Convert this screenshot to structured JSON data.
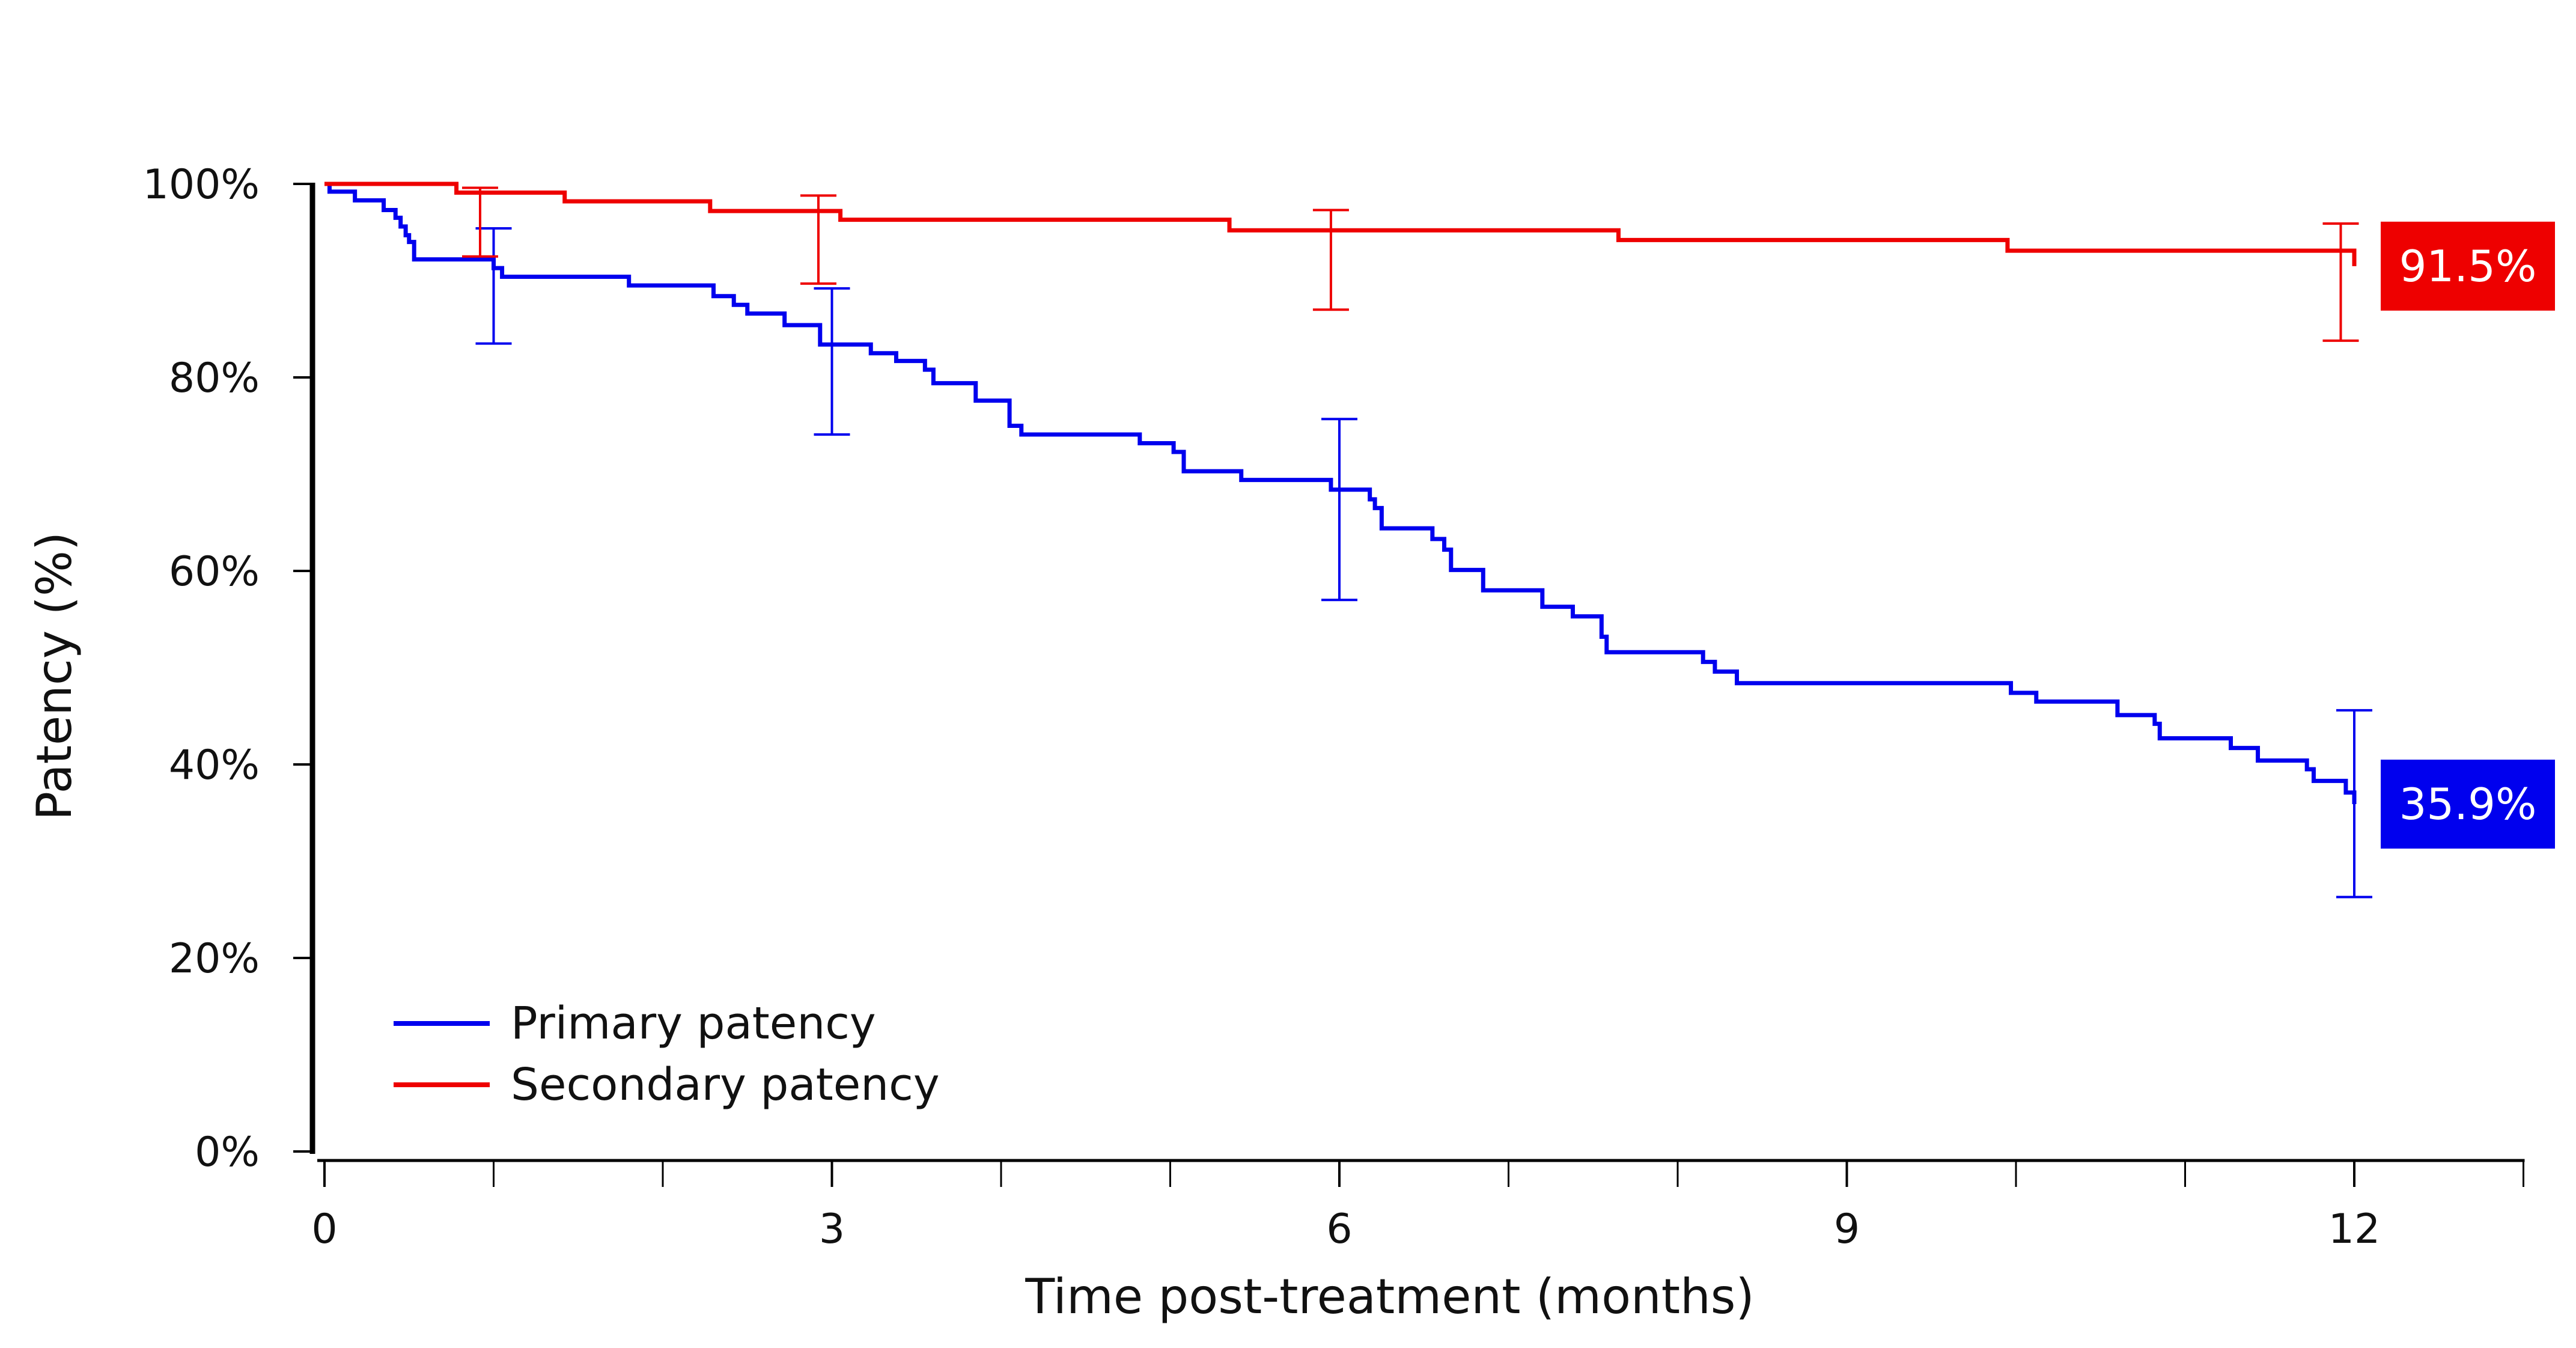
{
  "chart_data": {
    "type": "line",
    "step": true,
    "xlabel": "Time post-treatment (months)",
    "ylabel": "Patency (%)",
    "xlim": [
      0,
      13
    ],
    "ylim": [
      0,
      100
    ],
    "x_ticks": [
      0,
      3,
      6,
      9,
      12
    ],
    "x_minor_ticks": [
      1,
      2,
      4,
      5,
      7,
      8,
      10,
      11,
      13
    ],
    "y_ticks": [
      0,
      20,
      40,
      60,
      80,
      100
    ],
    "y_tick_labels": [
      "0%",
      "20%",
      "40%",
      "60%",
      "80%",
      "100%"
    ],
    "legend_position": "bottom-left",
    "grid": false,
    "series": [
      {
        "name": "Primary patency",
        "color": "#0000ee",
        "x": [
          0,
          0.03,
          0.18,
          0.35,
          0.42,
          0.45,
          0.48,
          0.5,
          0.53,
          1.0,
          1.05,
          1.8,
          2.3,
          2.42,
          2.5,
          2.72,
          2.93,
          3.23,
          3.38,
          3.55,
          3.6,
          3.85,
          4.05,
          4.12,
          4.82,
          5.02,
          5.08,
          5.42,
          5.95,
          6.18,
          6.21,
          6.25,
          6.55,
          6.62,
          6.66,
          6.85,
          7.2,
          7.38,
          7.55,
          7.58,
          8.15,
          8.22,
          8.35,
          9.97,
          10.12,
          10.6,
          10.82,
          10.85,
          11.27,
          11.43,
          11.72,
          11.76,
          11.95,
          12.0
        ],
        "y": [
          100,
          99.2,
          98.3,
          97.3,
          96.5,
          95.6,
          94.7,
          94.0,
          92.2,
          91.3,
          90.4,
          89.5,
          88.4,
          87.5,
          86.6,
          85.4,
          83.4,
          82.5,
          81.7,
          80.8,
          79.4,
          77.6,
          75.0,
          74.1,
          73.2,
          72.3,
          70.3,
          69.4,
          68.4,
          67.4,
          66.5,
          64.4,
          63.3,
          62.2,
          60.1,
          58.0,
          56.3,
          55.3,
          53.2,
          51.6,
          50.6,
          49.6,
          48.4,
          47.4,
          46.5,
          45.1,
          44.2,
          42.7,
          41.7,
          40.4,
          39.5,
          38.3,
          37.1,
          35.9
        ],
        "error_bars": [
          {
            "x": 1.0,
            "low": 83.5,
            "high": 95.4
          },
          {
            "x": 3.0,
            "low": 74.1,
            "high": 89.2
          },
          {
            "x": 6.0,
            "low": 57.0,
            "high": 75.7
          },
          {
            "x": 12.0,
            "low": 26.3,
            "high": 45.6
          }
        ],
        "end_label": "35.9%"
      },
      {
        "name": "Secondary patency",
        "color": "#ee0000",
        "x": [
          0,
          0.75,
          0.78,
          1.42,
          2.28,
          3.05,
          5.35,
          7.65,
          9.95,
          12.0
        ],
        "y": [
          100,
          100,
          99.1,
          98.2,
          97.2,
          96.3,
          95.2,
          94.2,
          93.1,
          91.5
        ],
        "error_bars": [
          {
            "x": 0.92,
            "low": 92.5,
            "high": 99.6
          },
          {
            "x": 2.92,
            "low": 89.7,
            "high": 98.8
          },
          {
            "x": 5.95,
            "low": 87.0,
            "high": 97.3
          },
          {
            "x": 11.92,
            "low": 83.8,
            "high": 95.9
          }
        ],
        "end_label": "91.5%"
      }
    ]
  }
}
